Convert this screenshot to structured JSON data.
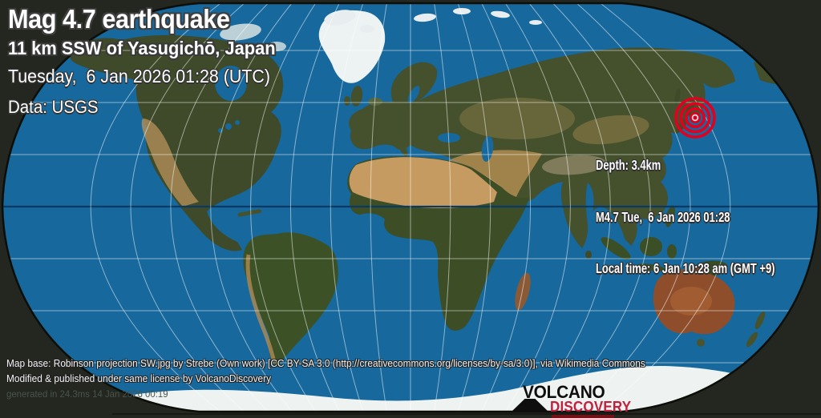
{
  "header": {
    "title": "Mag 4.7 earthquake",
    "location": "11 km SSW of Yasugichō, Japan",
    "datetime_utc": "Tuesday,  6 Jan 2026 01:28 (UTC)",
    "data_source": "Data: USGS"
  },
  "info_box": {
    "depth": "Depth: 3.4km",
    "magnitude_time": "M4.7 Tue,  6 Jan 2026 01:28",
    "local_time": "Local time: 6 Jan 10:28 am (GMT +9)"
  },
  "footer": {
    "credit_line1": "Map base: Robinson projection SW.jpg by Strebe (Own work) [CC BY-SA 3.0 (http://creativecommons.org/licenses/by-sa/3.0)], via Wikimedia Commons",
    "credit_line2": "Modified & published under same license by VolcanoDiscovery",
    "generated": "generated in 24.3ms 14 Jan 2026 00:19"
  },
  "logo": {
    "line1": "VOLCANO",
    "line2": "DISCOVERY",
    "icon": "volcano-icon"
  },
  "colors": {
    "marker_red": "#e3001f",
    "logo_red": "#c2203c",
    "ocean": "#16689d",
    "equator": "#0a3a63"
  }
}
